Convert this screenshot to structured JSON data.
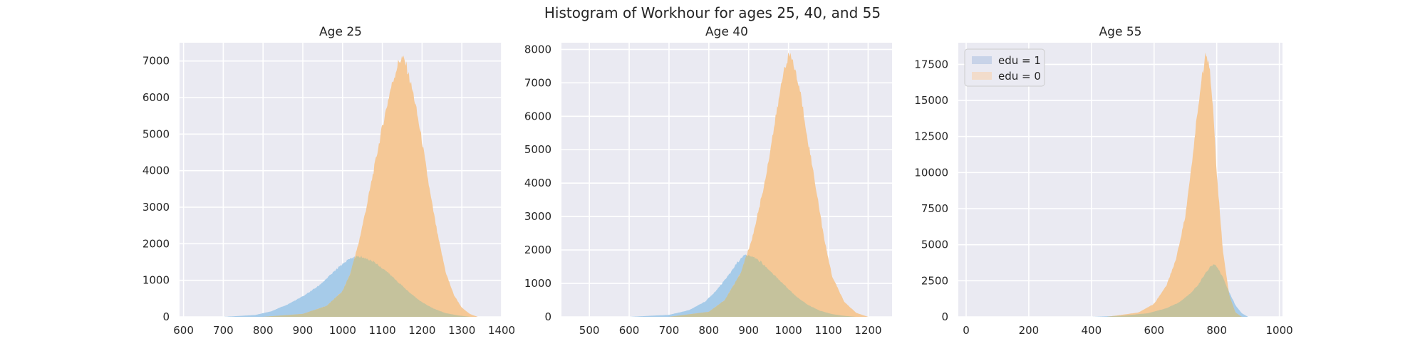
{
  "suptitle": "Histogram of Workhour for ages 25, 40, and 55",
  "colors": {
    "panel_bg": "#eaeaf2",
    "grid": "#ffffff",
    "edu1": "#a6cbe9",
    "edu0": "#f5c896",
    "overlap": "#c5c29c",
    "legend_edu1": "#c8d3e8",
    "legend_edu0": "#f2dccb"
  },
  "chart_data": [
    {
      "type": "histogram",
      "title": "Age 25",
      "xlim": [
        590,
        1400
      ],
      "ylim": [
        0,
        7500
      ],
      "xticks": [
        600,
        700,
        800,
        900,
        1000,
        1100,
        1200,
        1300,
        1400
      ],
      "yticks": [
        0,
        1000,
        2000,
        3000,
        4000,
        5000,
        6000,
        7000
      ],
      "series": [
        {
          "name": "edu = 1",
          "x": [
            700,
            780,
            820,
            860,
            900,
            940,
            970,
            1000,
            1020,
            1035,
            1050,
            1080,
            1110,
            1140,
            1170,
            1200,
            1230,
            1260,
            1290,
            1320
          ],
          "values": [
            0,
            50,
            150,
            330,
            560,
            850,
            1150,
            1450,
            1600,
            1650,
            1640,
            1500,
            1250,
            950,
            650,
            400,
            220,
            100,
            40,
            0
          ]
        },
        {
          "name": "edu = 0",
          "x": [
            800,
            900,
            960,
            1000,
            1020,
            1040,
            1060,
            1080,
            1100,
            1120,
            1140,
            1150,
            1160,
            1180,
            1200,
            1220,
            1240,
            1260,
            1280,
            1300,
            1320,
            1340
          ],
          "values": [
            0,
            80,
            300,
            700,
            1200,
            2000,
            3000,
            4100,
            5200,
            6200,
            6950,
            7100,
            6900,
            6000,
            4800,
            3400,
            2200,
            1200,
            600,
            250,
            80,
            0
          ]
        }
      ]
    },
    {
      "type": "histogram",
      "title": "Age 40",
      "xlim": [
        430,
        1260
      ],
      "ylim": [
        0,
        8200
      ],
      "xticks": [
        500,
        600,
        700,
        800,
        900,
        1000,
        1100,
        1200
      ],
      "yticks": [
        0,
        1000,
        2000,
        3000,
        4000,
        5000,
        6000,
        7000,
        8000
      ],
      "series": [
        {
          "name": "edu = 1",
          "x": [
            600,
            700,
            750,
            790,
            820,
            850,
            870,
            890,
            910,
            930,
            960,
            990,
            1020,
            1050,
            1080,
            1110,
            1140,
            1170
          ],
          "values": [
            0,
            60,
            200,
            450,
            800,
            1250,
            1600,
            1850,
            1800,
            1650,
            1300,
            950,
            600,
            350,
            180,
            80,
            30,
            0
          ]
        },
        {
          "name": "edu = 0",
          "x": [
            700,
            800,
            840,
            880,
            910,
            940,
            960,
            980,
            990,
            1000,
            1010,
            1030,
            1050,
            1070,
            1090,
            1110,
            1140,
            1170,
            1200
          ],
          "values": [
            0,
            150,
            500,
            1300,
            2400,
            4000,
            5400,
            6800,
            7500,
            7800,
            7700,
            6700,
            5200,
            3800,
            2300,
            1200,
            450,
            120,
            0
          ]
        }
      ]
    },
    {
      "type": "histogram",
      "title": "Age 55",
      "xlim": [
        -25,
        1010
      ],
      "ylim": [
        0,
        19000
      ],
      "xticks": [
        0,
        200,
        400,
        600,
        800,
        1000
      ],
      "yticks": [
        0,
        2500,
        5000,
        7500,
        10000,
        12500,
        15000,
        17500
      ],
      "series": [
        {
          "name": "edu = 1",
          "x": [
            400,
            500,
            580,
            640,
            680,
            710,
            740,
            760,
            780,
            790,
            800,
            820,
            840,
            860,
            880,
            900
          ],
          "values": [
            0,
            80,
            250,
            600,
            1000,
            1500,
            2200,
            2900,
            3500,
            3650,
            3500,
            2700,
            1700,
            800,
            250,
            0
          ]
        },
        {
          "name": "edu = 0",
          "x": [
            450,
            550,
            600,
            640,
            670,
            700,
            720,
            740,
            755,
            765,
            775,
            785,
            800,
            820,
            840,
            860,
            880
          ],
          "values": [
            0,
            300,
            900,
            2200,
            4000,
            7000,
            10500,
            14500,
            17000,
            18200,
            17800,
            15500,
            10000,
            4500,
            1500,
            300,
            0
          ]
        }
      ]
    }
  ],
  "legend": {
    "placement": "upper-left",
    "entries": [
      "edu = 1",
      "edu = 0"
    ]
  }
}
